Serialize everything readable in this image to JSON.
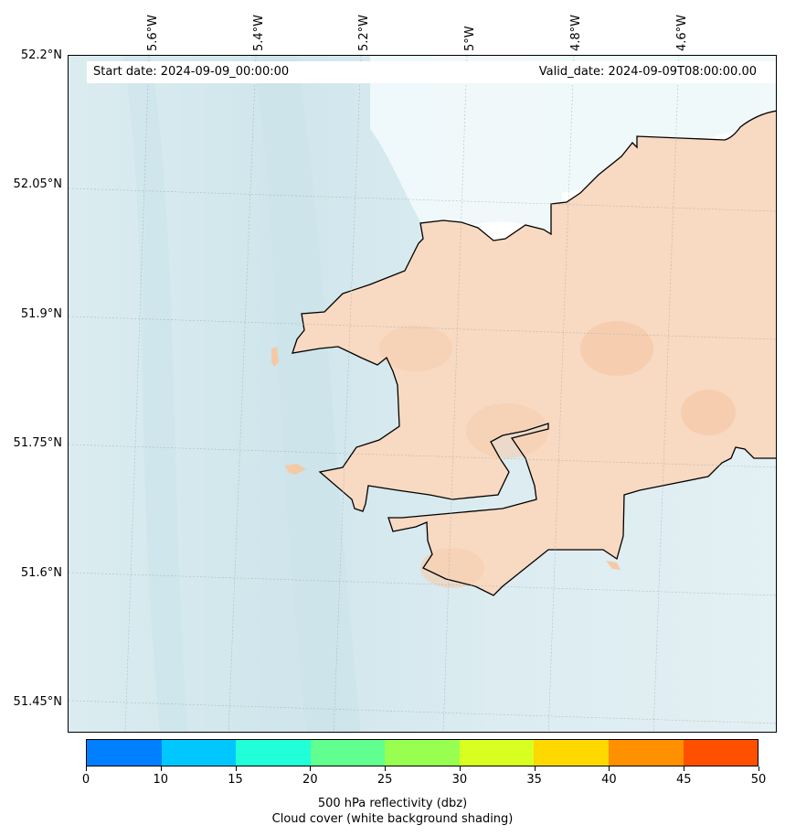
{
  "map": {
    "start_label": "Start date: 2024-09-09_00:00:00",
    "valid_label": "Valid_date: 2024-09-09T08:00:00.00",
    "lon_labels": [
      "5.6°W",
      "5.4°W",
      "5.2°W",
      "5°W",
      "4.8°W",
      "4.6°W"
    ],
    "lat_labels": [
      "52.2°N",
      "52.05°N",
      "51.9°N",
      "51.75°N",
      "51.6°N",
      "51.45°N"
    ],
    "colors": {
      "sea": "#d3e9ee",
      "land": "#f8d9c2",
      "cloud": "#ffffff"
    }
  },
  "colorbar": {
    "ticks": [
      "0",
      "10",
      "15",
      "20",
      "25",
      "30",
      "35",
      "40",
      "45",
      "50"
    ],
    "colors": [
      "#0080ff",
      "#00c8ff",
      "#20ffd8",
      "#60ff90",
      "#98ff50",
      "#d8ff20",
      "#ffd800",
      "#ff9000",
      "#ff5000"
    ],
    "label_line1": "500 hPa reflectivity (dbz)",
    "label_line2": "Cloud cover (white background shading)"
  }
}
